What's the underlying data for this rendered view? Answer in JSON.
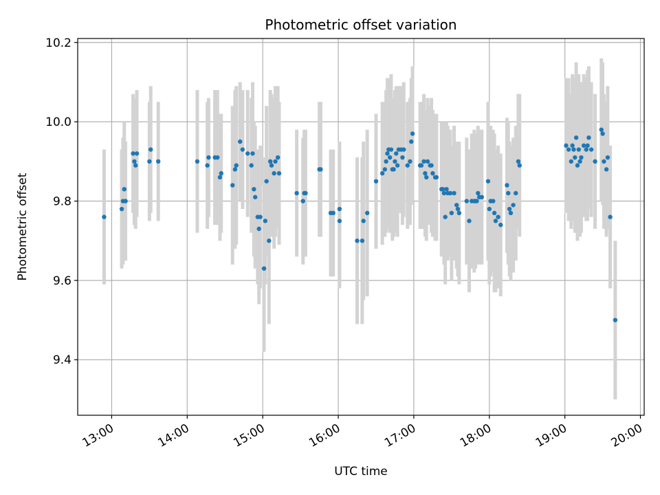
{
  "chart_data": {
    "type": "scatter",
    "title": "Photometric offset variation",
    "xlabel": "UTC time",
    "ylabel": "Photometric offset",
    "x_tick_labels": [
      "13:00",
      "14:00",
      "15:00",
      "16:00",
      "17:00",
      "18:00",
      "19:00",
      "20:00"
    ],
    "x_tick_values": [
      780,
      840,
      900,
      960,
      1020,
      1080,
      1140,
      1200
    ],
    "y_ticks": [
      9.4,
      9.6,
      9.8,
      10.0,
      10.2
    ],
    "xlim": [
      753,
      1203
    ],
    "ylim": [
      9.26,
      10.21
    ],
    "grid": true,
    "point_color": "#1f77b4",
    "errorbar_color": "#d3d3d3",
    "series": [
      {
        "x_unit": "minutes after midnight UTC",
        "points": [
          [
            774,
            9.76,
            0.17
          ],
          [
            788,
            9.78,
            0.15
          ],
          [
            789,
            9.8,
            0.16
          ],
          [
            790,
            9.83,
            0.17
          ],
          [
            791,
            9.8,
            0.15
          ],
          [
            797,
            9.92,
            0.15
          ],
          [
            798,
            9.9,
            0.16
          ],
          [
            799,
            9.89,
            0.16
          ],
          [
            800,
            9.92,
            0.16
          ],
          [
            810,
            9.9,
            0.15
          ],
          [
            811,
            9.93,
            0.16
          ],
          [
            817,
            9.9,
            0.15
          ],
          [
            848,
            9.9,
            0.18
          ],
          [
            856,
            9.89,
            0.16
          ],
          [
            857,
            9.91,
            0.15
          ],
          [
            862,
            9.91,
            0.17
          ],
          [
            864,
            9.91,
            0.17
          ],
          [
            866,
            9.86,
            0.16
          ],
          [
            867,
            9.87,
            0.15
          ],
          [
            876,
            9.84,
            0.2
          ],
          [
            878,
            9.88,
            0.2
          ],
          [
            879,
            9.89,
            0.2
          ],
          [
            882,
            9.95,
            0.15
          ],
          [
            884,
            9.93,
            0.15
          ],
          [
            888,
            9.92,
            0.16
          ],
          [
            891,
            9.89,
            0.17
          ],
          [
            892,
            9.92,
            0.18
          ],
          [
            893,
            9.83,
            0.17
          ],
          [
            894,
            9.81,
            0.18
          ],
          [
            896,
            9.76,
            0.17
          ],
          [
            897,
            9.73,
            0.19
          ],
          [
            898,
            9.76,
            0.18
          ],
          [
            901,
            9.63,
            0.21
          ],
          [
            902,
            9.75,
            0.16
          ],
          [
            903,
            9.85,
            0.19
          ],
          [
            905,
            9.7,
            0.21
          ],
          [
            906,
            9.9,
            0.18
          ],
          [
            907,
            9.89,
            0.18
          ],
          [
            909,
            9.87,
            0.19
          ],
          [
            910,
            9.9,
            0.19
          ],
          [
            912,
            9.91,
            0.18
          ],
          [
            913,
            9.87,
            0.18
          ],
          [
            927,
            9.82,
            0.16
          ],
          [
            932,
            9.8,
            0.16
          ],
          [
            933,
            9.82,
            0.16
          ],
          [
            934,
            9.82,
            0.16
          ],
          [
            945,
            9.88,
            0.17
          ],
          [
            946,
            9.88,
            0.17
          ],
          [
            954,
            9.77,
            0.16
          ],
          [
            956,
            9.77,
            0.16
          ],
          [
            961,
            9.75,
            0.17
          ],
          [
            961,
            9.78,
            0.17
          ],
          [
            975,
            9.7,
            0.21
          ],
          [
            979,
            9.7,
            0.21
          ],
          [
            980,
            9.75,
            0.2
          ],
          [
            983,
            9.77,
            0.21
          ],
          [
            990,
            9.85,
            0.17
          ],
          [
            995,
            9.87,
            0.18
          ],
          [
            997,
            9.88,
            0.17
          ],
          [
            998,
            9.9,
            0.18
          ],
          [
            999,
            9.92,
            0.19
          ],
          [
            1000,
            9.93,
            0.18
          ],
          [
            1001,
            9.91,
            0.19
          ],
          [
            1002,
            9.93,
            0.19
          ],
          [
            1003,
            9.88,
            0.18
          ],
          [
            1004,
            9.88,
            0.17
          ],
          [
            1005,
            9.9,
            0.18
          ],
          [
            1006,
            9.92,
            0.17
          ],
          [
            1007,
            9.89,
            0.18
          ],
          [
            1008,
            9.93,
            0.16
          ],
          [
            1010,
            9.93,
            0.16
          ],
          [
            1011,
            9.91,
            0.17
          ],
          [
            1012,
            9.93,
            0.17
          ],
          [
            1015,
            9.89,
            0.16
          ],
          [
            1017,
            9.9,
            0.16
          ],
          [
            1018,
            9.95,
            0.16
          ],
          [
            1019,
            9.97,
            0.17
          ],
          [
            1025,
            9.89,
            0.16
          ],
          [
            1026,
            9.89,
            0.16
          ],
          [
            1028,
            9.9,
            0.17
          ],
          [
            1029,
            9.87,
            0.16
          ],
          [
            1030,
            9.86,
            0.16
          ],
          [
            1031,
            9.9,
            0.16
          ],
          [
            1033,
            9.89,
            0.15
          ],
          [
            1034,
            9.89,
            0.17
          ],
          [
            1035,
            9.87,
            0.16
          ],
          [
            1037,
            9.86,
            0.16
          ],
          [
            1038,
            9.86,
            0.16
          ],
          [
            1042,
            9.83,
            0.17
          ],
          [
            1043,
            9.83,
            0.16
          ],
          [
            1044,
            9.82,
            0.18
          ],
          [
            1045,
            9.76,
            0.17
          ],
          [
            1046,
            9.83,
            0.17
          ],
          [
            1047,
            9.82,
            0.17
          ],
          [
            1049,
            9.82,
            0.16
          ],
          [
            1050,
            9.77,
            0.17
          ],
          [
            1052,
            9.82,
            0.17
          ],
          [
            1054,
            9.79,
            0.16
          ],
          [
            1055,
            9.78,
            0.17
          ],
          [
            1056,
            9.77,
            0.18
          ],
          [
            1062,
            9.8,
            0.16
          ],
          [
            1064,
            9.75,
            0.18
          ],
          [
            1066,
            9.8,
            0.17
          ],
          [
            1068,
            9.8,
            0.18
          ],
          [
            1069,
            9.8,
            0.17
          ],
          [
            1070,
            9.8,
            0.16
          ],
          [
            1071,
            9.82,
            0.17
          ],
          [
            1072,
            9.81,
            0.17
          ],
          [
            1074,
            9.81,
            0.17
          ],
          [
            1079,
            9.85,
            0.2
          ],
          [
            1080,
            9.78,
            0.19
          ],
          [
            1081,
            9.8,
            0.19
          ],
          [
            1083,
            9.8,
            0.18
          ],
          [
            1084,
            9.77,
            0.2
          ],
          [
            1085,
            9.75,
            0.18
          ],
          [
            1087,
            9.76,
            0.18
          ],
          [
            1089,
            9.74,
            0.18
          ],
          [
            1094,
            9.84,
            0.17
          ],
          [
            1095,
            9.82,
            0.18
          ],
          [
            1096,
            9.78,
            0.17
          ],
          [
            1097,
            9.77,
            0.17
          ],
          [
            1099,
            9.79,
            0.17
          ],
          [
            1101,
            9.82,
            0.17
          ],
          [
            1103,
            9.9,
            0.17
          ],
          [
            1104,
            9.89,
            0.18
          ],
          [
            1141,
            9.94,
            0.17
          ],
          [
            1143,
            9.93,
            0.18
          ],
          [
            1145,
            9.9,
            0.17
          ],
          [
            1146,
            9.94,
            0.18
          ],
          [
            1147,
            9.93,
            0.18
          ],
          [
            1148,
            9.91,
            0.19
          ],
          [
            1149,
            9.96,
            0.19
          ],
          [
            1150,
            9.89,
            0.19
          ],
          [
            1151,
            9.93,
            0.19
          ],
          [
            1152,
            9.9,
            0.19
          ],
          [
            1153,
            9.91,
            0.19
          ],
          [
            1155,
            9.94,
            0.18
          ],
          [
            1157,
            9.93,
            0.18
          ],
          [
            1158,
            9.94,
            0.19
          ],
          [
            1159,
            9.96,
            0.18
          ],
          [
            1161,
            9.93,
            0.17
          ],
          [
            1164,
            9.9,
            0.17
          ],
          [
            1169,
            9.98,
            0.18
          ],
          [
            1170,
            9.97,
            0.18
          ],
          [
            1171,
            9.9,
            0.17
          ],
          [
            1173,
            9.88,
            0.17
          ],
          [
            1174,
            9.91,
            0.18
          ],
          [
            1176,
            9.76,
            0.18
          ],
          [
            1180,
            9.5,
            0.2
          ]
        ]
      }
    ]
  }
}
